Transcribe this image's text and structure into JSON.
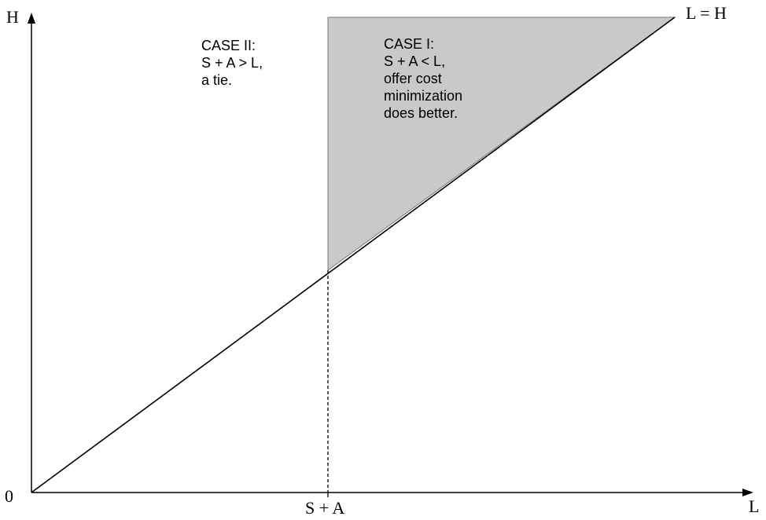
{
  "axes": {
    "y_label": "H",
    "x_label": "L",
    "origin_label": "0",
    "x_tick_label": "S + A"
  },
  "diagonal": {
    "label": "L = H"
  },
  "case_ii": {
    "lines": [
      "CASE II:",
      "S + A > L,",
      "a tie."
    ]
  },
  "case_i": {
    "lines": [
      "CASE I:",
      "S + A < L,",
      "offer cost",
      "minimization",
      "does better."
    ]
  },
  "colors": {
    "region_fill": "#c9c9c9",
    "line": "#000000",
    "background": "#ffffff"
  }
}
